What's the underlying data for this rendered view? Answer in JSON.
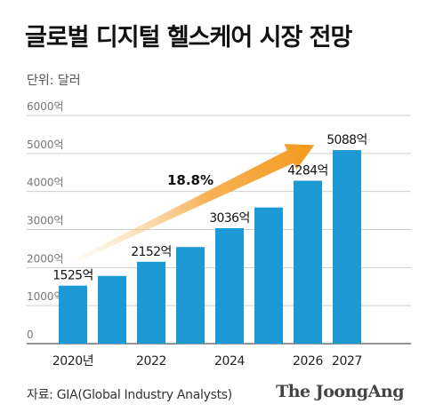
{
  "header": {
    "title": "글로벌 디지털 헬스케어 시장 전망",
    "unit_label": "단위: 달러"
  },
  "footer": {
    "source": "자료: GIA(Global Industry Analysts)",
    "logo": "The JoongAng"
  },
  "chart_data": {
    "type": "bar",
    "title": "글로벌 디지털 헬스케어 시장 전망",
    "ylabel": "",
    "xlabel": "",
    "ylim": [
      0,
      6000
    ],
    "y_ticks": [
      "0",
      "1000억",
      "2000억",
      "3000억",
      "4000억",
      "5000억",
      "6000억"
    ],
    "y_tick_values": [
      0,
      1000,
      2000,
      3000,
      4000,
      5000,
      6000
    ],
    "categories": [
      "2020년",
      "2021",
      "2022",
      "2023",
      "2024",
      "2025",
      "2026",
      "2027"
    ],
    "x_tick_labels": [
      "2020년",
      "",
      "2022",
      "",
      "2024",
      "",
      "2026",
      "2027"
    ],
    "values": [
      1525,
      1780,
      2152,
      2540,
      3036,
      3580,
      4284,
      5088
    ],
    "data_labels": [
      "1525억",
      "",
      "2152억",
      "",
      "3036억",
      "",
      "4284억",
      "5088억"
    ],
    "growth_annotation": "18.8%",
    "grid": true,
    "bar_color": "#1d9ad6",
    "arrow_color": "#f39a1f"
  }
}
